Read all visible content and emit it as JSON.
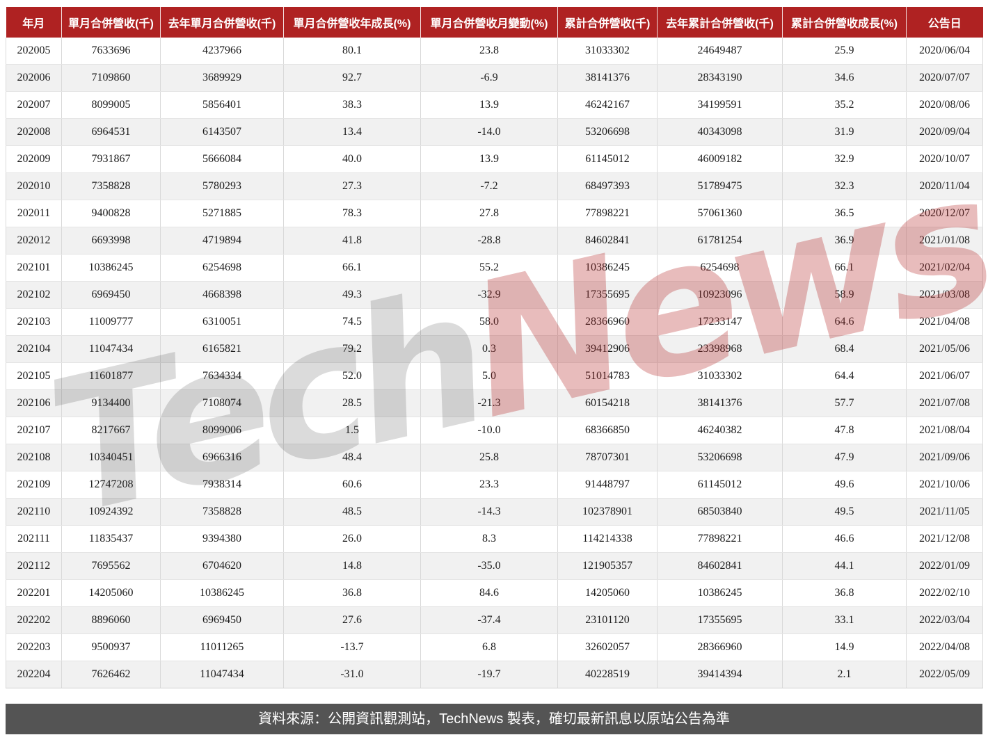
{
  "chart_data": {
    "type": "table",
    "columns": [
      "年月",
      "單月合併營收(千)",
      "去年單月合併營收(千)",
      "單月合併營收年成長(%)",
      "單月合併營收月變動(%)",
      "累計合併營收(千)",
      "去年累計合併營收(千)",
      "累計合併營收成長(%)",
      "公告日"
    ],
    "rows": [
      [
        "202005",
        "7633696",
        "4237966",
        "80.1",
        "23.8",
        "31033302",
        "24649487",
        "25.9",
        "2020/06/04"
      ],
      [
        "202006",
        "7109860",
        "3689929",
        "92.7",
        "-6.9",
        "38141376",
        "28343190",
        "34.6",
        "2020/07/07"
      ],
      [
        "202007",
        "8099005",
        "5856401",
        "38.3",
        "13.9",
        "46242167",
        "34199591",
        "35.2",
        "2020/08/06"
      ],
      [
        "202008",
        "6964531",
        "6143507",
        "13.4",
        "-14.0",
        "53206698",
        "40343098",
        "31.9",
        "2020/09/04"
      ],
      [
        "202009",
        "7931867",
        "5666084",
        "40.0",
        "13.9",
        "61145012",
        "46009182",
        "32.9",
        "2020/10/07"
      ],
      [
        "202010",
        "7358828",
        "5780293",
        "27.3",
        "-7.2",
        "68497393",
        "51789475",
        "32.3",
        "2020/11/04"
      ],
      [
        "202011",
        "9400828",
        "5271885",
        "78.3",
        "27.8",
        "77898221",
        "57061360",
        "36.5",
        "2020/12/07"
      ],
      [
        "202012",
        "6693998",
        "4719894",
        "41.8",
        "-28.8",
        "84602841",
        "61781254",
        "36.9",
        "2021/01/08"
      ],
      [
        "202101",
        "10386245",
        "6254698",
        "66.1",
        "55.2",
        "10386245",
        "6254698",
        "66.1",
        "2021/02/04"
      ],
      [
        "202102",
        "6969450",
        "4668398",
        "49.3",
        "-32.9",
        "17355695",
        "10923096",
        "58.9",
        "2021/03/08"
      ],
      [
        "202103",
        "11009777",
        "6310051",
        "74.5",
        "58.0",
        "28366960",
        "17233147",
        "64.6",
        "2021/04/08"
      ],
      [
        "202104",
        "11047434",
        "6165821",
        "79.2",
        "0.3",
        "39412906",
        "23398968",
        "68.4",
        "2021/05/06"
      ],
      [
        "202105",
        "11601877",
        "7634334",
        "52.0",
        "5.0",
        "51014783",
        "31033302",
        "64.4",
        "2021/06/07"
      ],
      [
        "202106",
        "9134400",
        "7108074",
        "28.5",
        "-21.3",
        "60154218",
        "38141376",
        "57.7",
        "2021/07/08"
      ],
      [
        "202107",
        "8217667",
        "8099006",
        "1.5",
        "-10.0",
        "68366850",
        "46240382",
        "47.8",
        "2021/08/04"
      ],
      [
        "202108",
        "10340451",
        "6966316",
        "48.4",
        "25.8",
        "78707301",
        "53206698",
        "47.9",
        "2021/09/06"
      ],
      [
        "202109",
        "12747208",
        "7938314",
        "60.6",
        "23.3",
        "91448797",
        "61145012",
        "49.6",
        "2021/10/06"
      ],
      [
        "202110",
        "10924392",
        "7358828",
        "48.5",
        "-14.3",
        "102378901",
        "68503840",
        "49.5",
        "2021/11/05"
      ],
      [
        "202111",
        "11835437",
        "9394380",
        "26.0",
        "8.3",
        "114214338",
        "77898221",
        "46.6",
        "2021/12/08"
      ],
      [
        "202112",
        "7695562",
        "6704620",
        "14.8",
        "-35.0",
        "121905357",
        "84602841",
        "44.1",
        "2022/01/09"
      ],
      [
        "202201",
        "14205060",
        "10386245",
        "36.8",
        "84.6",
        "14205060",
        "10386245",
        "36.8",
        "2022/02/10"
      ],
      [
        "202202",
        "8896060",
        "6969450",
        "27.6",
        "-37.4",
        "23101120",
        "17355695",
        "33.1",
        "2022/03/04"
      ],
      [
        "202203",
        "9500937",
        "11011265",
        "-13.7",
        "6.8",
        "32602057",
        "28366960",
        "14.9",
        "2022/04/08"
      ],
      [
        "202204",
        "7626462",
        "11047434",
        "-31.0",
        "-19.7",
        "40228519",
        "39414394",
        "2.1",
        "2022/05/09"
      ]
    ],
    "layout": {
      "header_position": "top",
      "row_striping": true
    }
  },
  "watermark": {
    "part1": "Tech",
    "part2": "News"
  },
  "footer": {
    "source_text": "資料來源：公開資訊觀測站，TechNews 製表，確切最新訊息以原站公告為準"
  },
  "colors": {
    "header_bg": "#AF2222",
    "footer_bg": "#545454",
    "row_alt_bg": "#F1F1F1",
    "watermark_news": "#B22222"
  }
}
